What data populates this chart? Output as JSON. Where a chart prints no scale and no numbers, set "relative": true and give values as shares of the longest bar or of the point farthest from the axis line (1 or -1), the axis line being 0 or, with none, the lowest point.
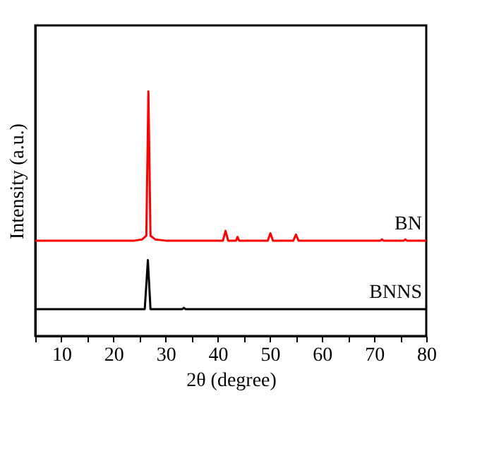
{
  "chart_data": {
    "type": "line",
    "relative": true,
    "xlabel": "2θ (degree)",
    "ylabel": "Intensity (a.u.)",
    "xlim": [
      5,
      80
    ],
    "xticks": [
      {
        "value": 5,
        "label": null
      },
      10,
      {
        "value": 15,
        "label": null
      },
      20,
      {
        "value": 25,
        "label": null
      },
      30,
      {
        "value": 35,
        "label": null
      },
      40,
      {
        "value": 45,
        "label": null
      },
      50,
      {
        "value": 55,
        "label": null
      },
      60,
      {
        "value": 65,
        "label": null
      },
      70,
      {
        "value": 75,
        "label": null
      },
      80
    ],
    "tick_labels": "x",
    "grid": false,
    "legend": false,
    "marker": "none",
    "line_style": "solid",
    "series": [
      {
        "name": "BN",
        "color": "#ff0000",
        "x": [
          5,
          24,
          25.5,
          26.3,
          26.7,
          27.1,
          28,
          30,
          41,
          41.5,
          42,
          43.5,
          43.8,
          44.1,
          49.6,
          50.1,
          50.6,
          54.5,
          55,
          55.5,
          71.2,
          71.5,
          71.8,
          75.7,
          76,
          76.3,
          80
        ],
        "values": [
          0.39,
          0.39,
          0.395,
          0.41,
          1.0,
          0.41,
          0.395,
          0.39,
          0.39,
          0.43,
          0.39,
          0.39,
          0.405,
          0.39,
          0.39,
          0.42,
          0.39,
          0.39,
          0.415,
          0.39,
          0.39,
          0.395,
          0.39,
          0.39,
          0.395,
          0.39,
          0.39
        ]
      },
      {
        "name": "BNNS",
        "color": "#000000",
        "x": [
          5,
          26,
          26.6,
          27.1,
          33.2,
          33.5,
          33.8,
          80
        ],
        "values": [
          0.11,
          0.11,
          0.31,
          0.11,
          0.11,
          0.115,
          0.11,
          0.11
        ]
      }
    ]
  }
}
